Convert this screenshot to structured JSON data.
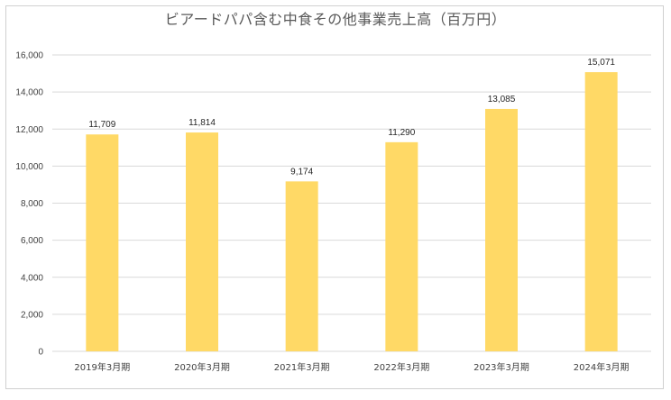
{
  "chart_data": {
    "type": "bar",
    "title": "ビアードパパ含む中食その他事業売上高（百万円）",
    "categories": [
      "2019年3月期",
      "2020年3月期",
      "2021年3月期",
      "2022年3月期",
      "2023年3月期",
      "2024年3月期"
    ],
    "values": [
      11709,
      11814,
      9174,
      11290,
      13085,
      15071
    ],
    "data_labels": [
      "11,709",
      "11,814",
      "9,174",
      "11,290",
      "13,085",
      "15,071"
    ],
    "ylim": [
      0,
      16000
    ],
    "yticks": [
      "0",
      "2,000",
      "4,000",
      "6,000",
      "8,000",
      "10,000",
      "12,000",
      "14,000",
      "16,000"
    ],
    "grid": true,
    "legend": "none",
    "bar_color": "#FFD966",
    "grid_color": "#D9D9D9"
  }
}
